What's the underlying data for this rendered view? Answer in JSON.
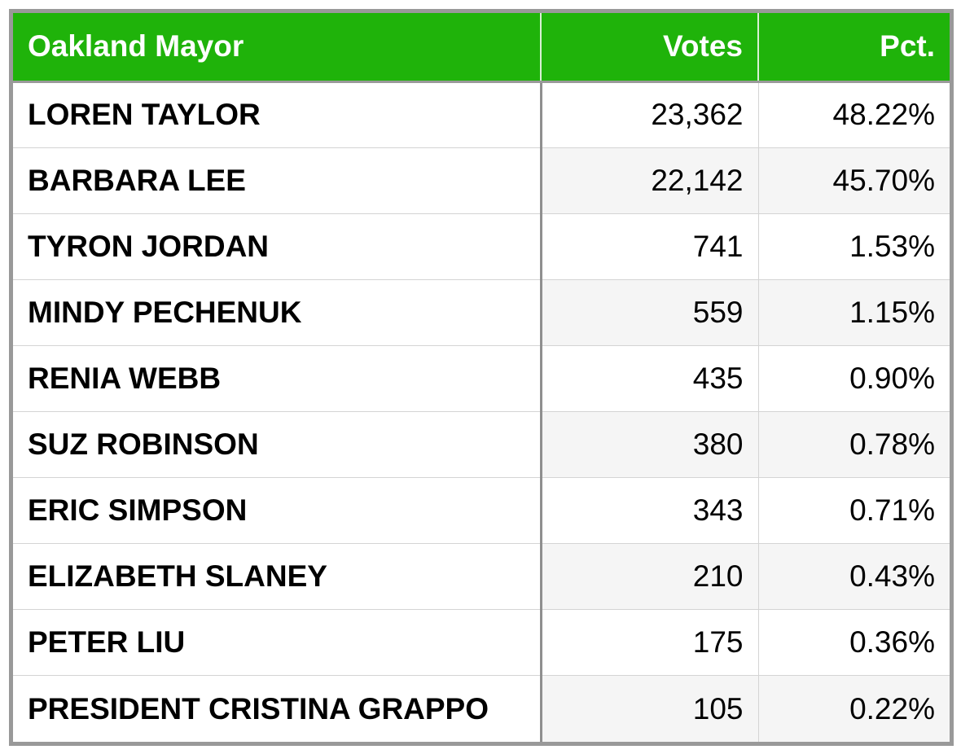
{
  "chart_data": {
    "type": "table",
    "title": "Oakland Mayor",
    "columns": [
      "Oakland Mayor",
      "Votes",
      "Pct."
    ],
    "rows": [
      {
        "name": "LOREN TAYLOR",
        "votes": "23,362",
        "pct": "48.22%"
      },
      {
        "name": "BARBARA LEE",
        "votes": "22,142",
        "pct": "45.70%"
      },
      {
        "name": "TYRON JORDAN",
        "votes": "741",
        "pct": "1.53%"
      },
      {
        "name": "MINDY PECHENUK",
        "votes": "559",
        "pct": "1.15%"
      },
      {
        "name": "RENIA WEBB",
        "votes": "435",
        "pct": "0.90%"
      },
      {
        "name": "SUZ ROBINSON",
        "votes": "380",
        "pct": "0.78%"
      },
      {
        "name": "ERIC SIMPSON",
        "votes": "343",
        "pct": "0.71%"
      },
      {
        "name": "ELIZABETH SLANEY",
        "votes": "210",
        "pct": "0.43%"
      },
      {
        "name": "PETER LIU",
        "votes": "175",
        "pct": "0.36%"
      },
      {
        "name": "PRESIDENT CRISTINA GRAPPO",
        "votes": "105",
        "pct": "0.22%"
      }
    ]
  },
  "colors": {
    "header_bg": "#1fb30a",
    "header_text": "#ffffff",
    "frame_border": "#999999",
    "alt_row_bg": "#f5f5f5"
  }
}
